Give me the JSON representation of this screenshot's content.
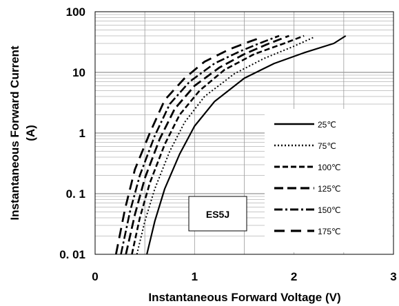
{
  "chart_data": {
    "type": "line",
    "title": "",
    "xlabel": "Instantaneous Forward Voltage (V)",
    "ylabel_line1": "Instantaneous Forward Current",
    "ylabel_line2": "(A)",
    "x_ticks": [
      "0",
      "1",
      "2",
      "3"
    ],
    "y_ticks": [
      "0. 01",
      "0. 1",
      "1",
      "10",
      "100"
    ],
    "xlim": [
      0,
      3
    ],
    "ylim": [
      0.01,
      100
    ],
    "y_scale": "log",
    "grid": true,
    "legend_position": "right",
    "annotation": "ES5J",
    "series": [
      {
        "name": "25℃",
        "dash": "solid",
        "x": [
          0.52,
          0.6,
          0.7,
          0.85,
          1.0,
          1.2,
          1.5,
          1.8,
          2.1,
          2.4,
          2.52
        ],
        "y": [
          0.01,
          0.035,
          0.12,
          0.45,
          1.3,
          3.3,
          8.0,
          14.0,
          21.0,
          30.0,
          40.0
        ]
      },
      {
        "name": "75℃",
        "dash": "dotted",
        "x": [
          0.42,
          0.5,
          0.6,
          0.75,
          0.9,
          1.1,
          1.4,
          1.7,
          2.0,
          2.2
        ],
        "y": [
          0.01,
          0.035,
          0.12,
          0.5,
          1.5,
          4.0,
          9.5,
          17.0,
          27.0,
          38.0
        ]
      },
      {
        "name": "100℃",
        "dash": "short-dash",
        "x": [
          0.37,
          0.45,
          0.55,
          0.7,
          0.85,
          1.05,
          1.3,
          1.6,
          1.9,
          2.1
        ],
        "y": [
          0.01,
          0.04,
          0.15,
          0.65,
          2.0,
          5.0,
          11.0,
          20.0,
          30.0,
          40.0
        ]
      },
      {
        "name": "125℃",
        "dash": "long-dash",
        "x": [
          0.31,
          0.4,
          0.5,
          0.65,
          0.8,
          1.0,
          1.25,
          1.5,
          1.75,
          1.95
        ],
        "y": [
          0.01,
          0.045,
          0.18,
          0.8,
          2.5,
          6.0,
          12.0,
          20.0,
          30.0,
          40.0
        ]
      },
      {
        "name": "150℃",
        "dash": "dash-dot",
        "x": [
          0.26,
          0.35,
          0.45,
          0.6,
          0.75,
          0.95,
          1.2,
          1.45,
          1.65,
          1.85
        ],
        "y": [
          0.01,
          0.05,
          0.2,
          0.9,
          3.0,
          7.0,
          14.0,
          22.0,
          30.0,
          40.0
        ]
      },
      {
        "name": "175℃",
        "dash": "long-gap",
        "x": [
          0.21,
          0.3,
          0.4,
          0.55,
          0.7,
          0.9,
          1.1,
          1.35,
          1.55,
          1.68
        ],
        "y": [
          0.01,
          0.055,
          0.25,
          1.0,
          3.5,
          8.0,
          15.0,
          24.0,
          32.0,
          38.0
        ]
      }
    ]
  }
}
